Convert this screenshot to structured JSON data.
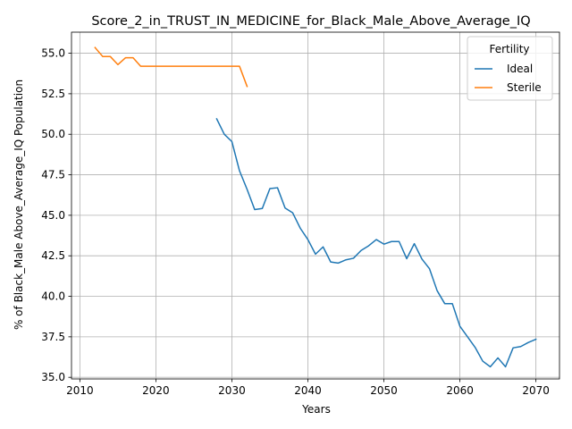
{
  "chart_data": {
    "type": "line",
    "title": "Score_2_in_TRUST_IN_MEDICINE_for_Black_Male_Above_Average_IQ",
    "xlabel": "Years",
    "ylabel": "% of Black_Male Above_Average_IQ Population",
    "xlim": [
      2008.9,
      2073.1
    ],
    "ylim": [
      34.9,
      56.3
    ],
    "xticks": [
      2010,
      2020,
      2030,
      2040,
      2050,
      2060,
      2070
    ],
    "yticks": [
      35.0,
      37.5,
      40.0,
      42.5,
      45.0,
      47.5,
      50.0,
      52.5,
      55.0
    ],
    "grid": true,
    "legend": {
      "title": "Fertility",
      "position": "top-right"
    },
    "series": [
      {
        "name": "Ideal",
        "color": "#1f77b4",
        "x": [
          2028,
          2029,
          2030,
          2031,
          2032,
          2033,
          2034,
          2035,
          2036,
          2037,
          2038,
          2039,
          2040,
          2041,
          2042,
          2043,
          2044,
          2045,
          2046,
          2047,
          2048,
          2049,
          2050,
          2051,
          2052,
          2053,
          2054,
          2055,
          2056,
          2057,
          2058,
          2059,
          2060,
          2061,
          2062,
          2063,
          2064,
          2065,
          2066,
          2067,
          2068,
          2069,
          2070
        ],
        "values": [
          50.95,
          50.0,
          49.55,
          47.75,
          46.6,
          45.35,
          45.42,
          46.65,
          46.7,
          45.45,
          45.15,
          44.2,
          43.5,
          42.6,
          43.05,
          42.12,
          42.05,
          42.25,
          42.35,
          42.83,
          43.12,
          43.5,
          43.22,
          43.38,
          43.38,
          42.32,
          43.25,
          42.3,
          41.7,
          40.35,
          39.55,
          39.55,
          38.15,
          37.5,
          36.85,
          36.0,
          35.65,
          36.2,
          35.65,
          36.82,
          36.9,
          37.15,
          37.35
        ]
      },
      {
        "name": "Sterile",
        "color": "#ff7f0e",
        "x": [
          2012,
          2013,
          2014,
          2015,
          2016,
          2017,
          2018,
          2019,
          2020,
          2021,
          2022,
          2023,
          2024,
          2025,
          2026,
          2027,
          2028,
          2029,
          2030,
          2031,
          2032
        ],
        "values": [
          55.35,
          54.8,
          54.8,
          54.3,
          54.72,
          54.72,
          54.2,
          54.2,
          54.2,
          54.2,
          54.2,
          54.2,
          54.2,
          54.2,
          54.2,
          54.2,
          54.2,
          54.2,
          54.2,
          54.2,
          52.95
        ]
      }
    ]
  }
}
